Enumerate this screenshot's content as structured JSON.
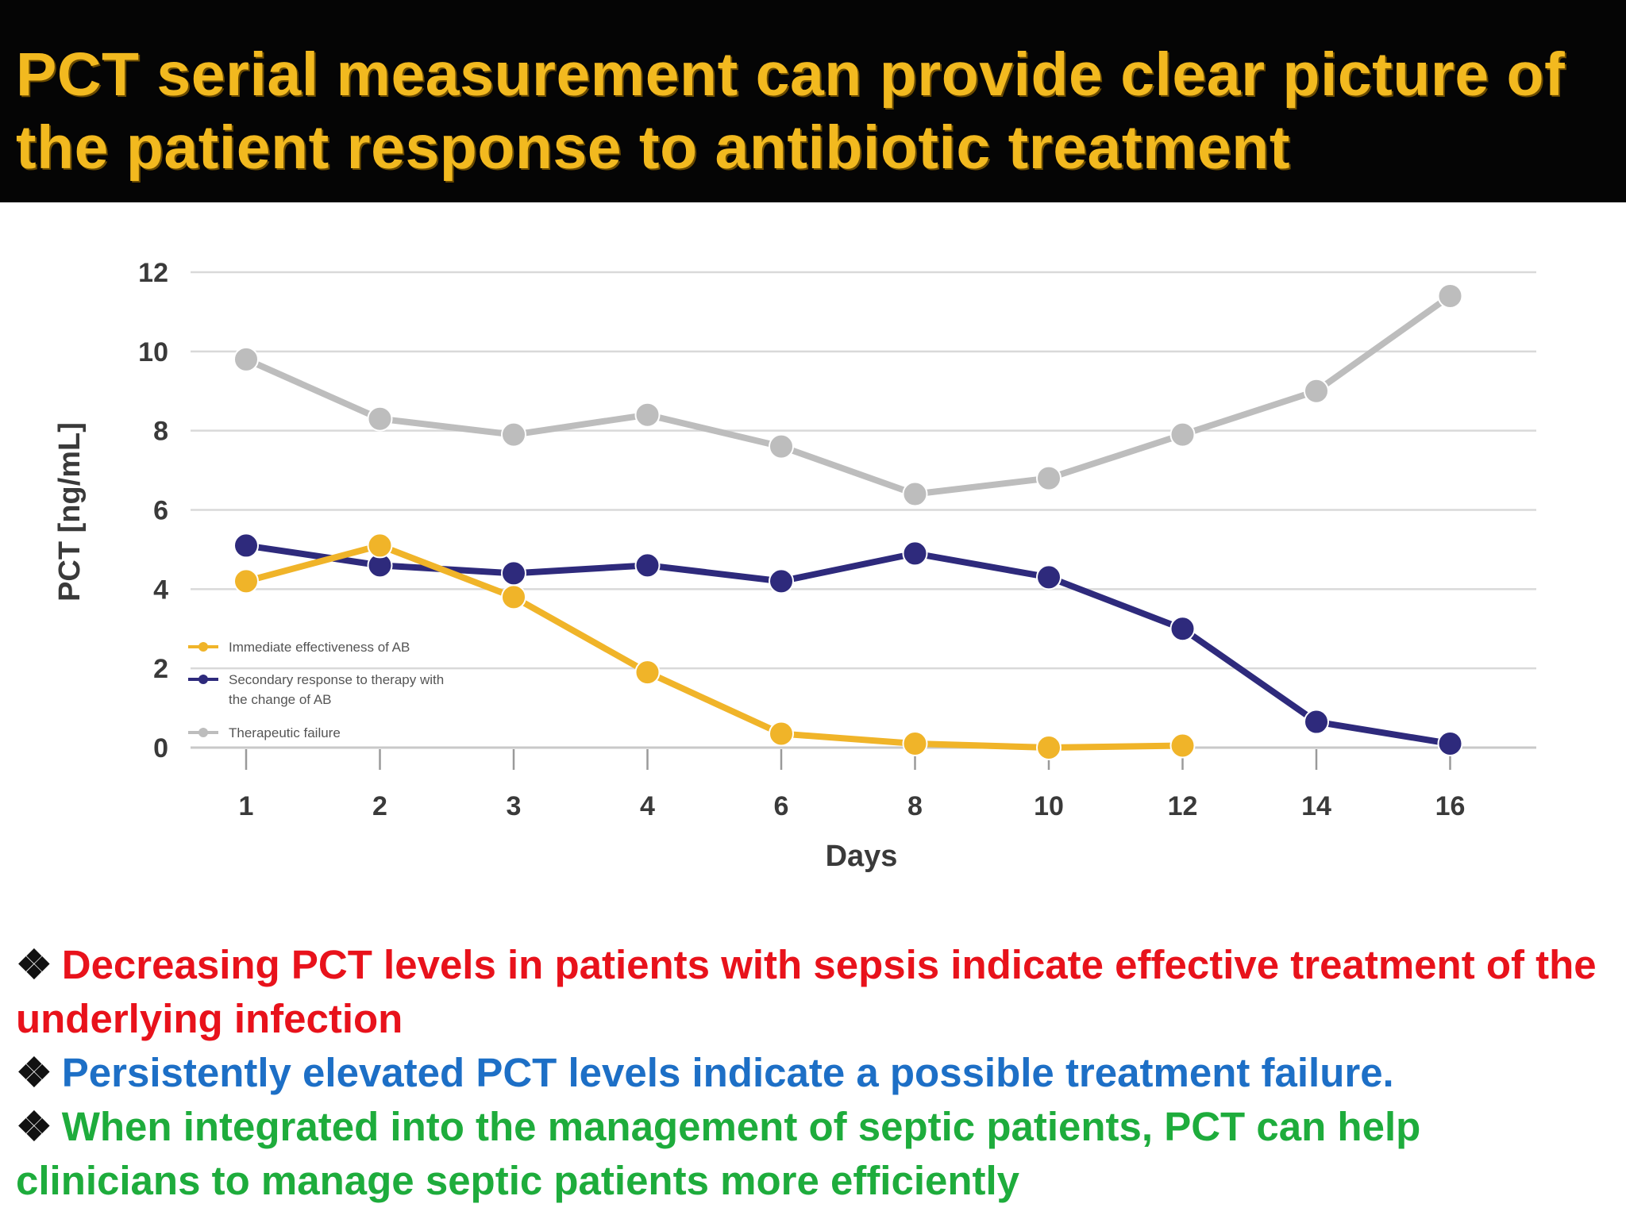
{
  "slide": {
    "title": "PCT serial measurement can provide clear picture of the patient response to antibiotic treatment"
  },
  "chart_data": {
    "type": "line",
    "categories": [
      "1",
      "2",
      "3",
      "4",
      "6",
      "8",
      "10",
      "12",
      "14",
      "16"
    ],
    "xlabel": "Days",
    "ylabel": "PCT [ng/mL]",
    "ylim": [
      0,
      12
    ],
    "yticks": [
      0,
      2,
      4,
      6,
      8,
      10,
      12
    ],
    "grid": true,
    "legend_position": "bottom-left",
    "series": [
      {
        "name": "Immediate effectiveness of AB",
        "color": "#f0b429",
        "values": [
          4.2,
          5.1,
          3.8,
          1.9,
          0.35,
          0.1,
          0.0,
          0.05,
          null,
          null
        ]
      },
      {
        "name": "Secondary response to therapy with the change of AB",
        "color": "#2e2a7c",
        "values": [
          5.1,
          4.6,
          4.4,
          4.6,
          4.2,
          4.9,
          4.3,
          3.0,
          0.65,
          0.1
        ]
      },
      {
        "name": "Therapeutic failure",
        "color": "#bdbdbd",
        "values": [
          9.8,
          8.3,
          7.9,
          8.4,
          7.6,
          6.4,
          6.8,
          7.9,
          9.0,
          11.4
        ]
      }
    ]
  },
  "notes": [
    {
      "symbol": "❖",
      "text": "Decreasing PCT levels in patients with sepsis indicate effective treatment of the underlying infection",
      "color": "#e8121b"
    },
    {
      "symbol": "❖",
      "text": "Persistently elevated PCT levels indicate a possible treatment failure.",
      "color": "#1d6fc6"
    },
    {
      "symbol": "❖",
      "text": "When integrated into the management of septic patients, PCT can help clinicians to manage septic patients more efficiently",
      "color": "#1eac3c"
    }
  ]
}
